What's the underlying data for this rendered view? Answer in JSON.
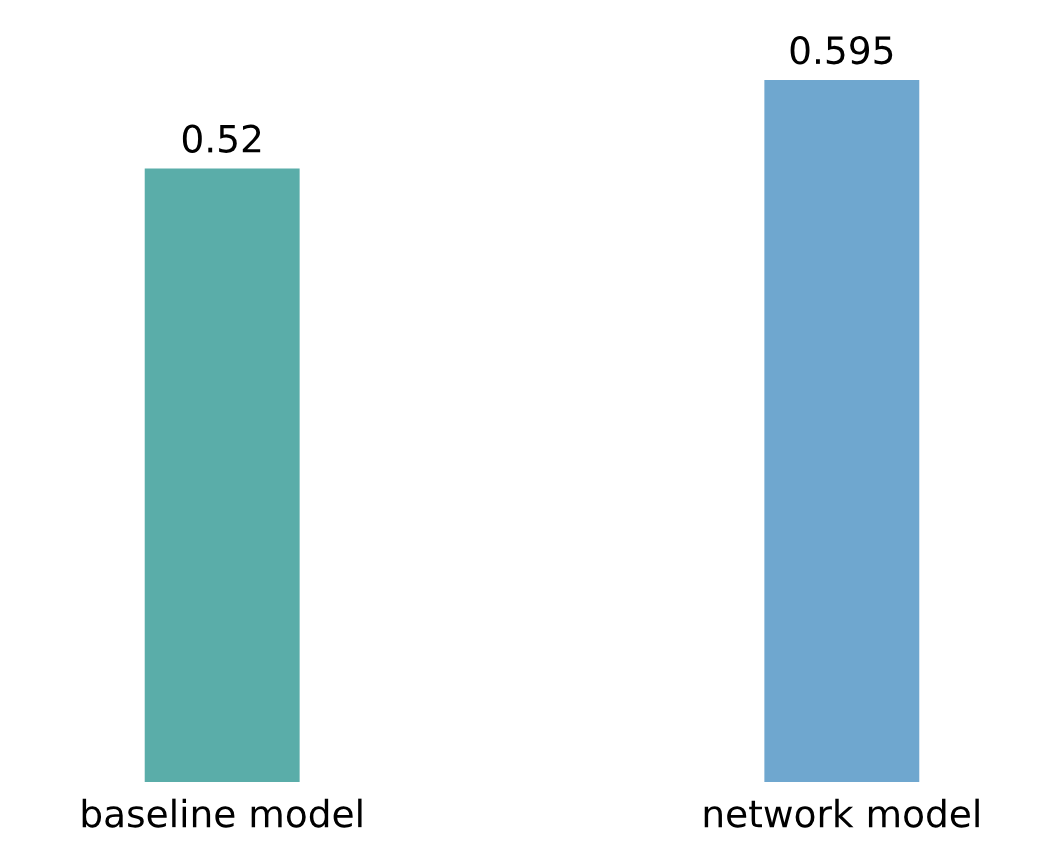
{
  "chart_data": {
    "type": "bar",
    "categories": [
      "baseline model",
      "network model"
    ],
    "values": [
      0.52,
      0.595
    ],
    "colors": [
      "#5aada9",
      "#6fa7cf"
    ],
    "data_labels": true
  }
}
